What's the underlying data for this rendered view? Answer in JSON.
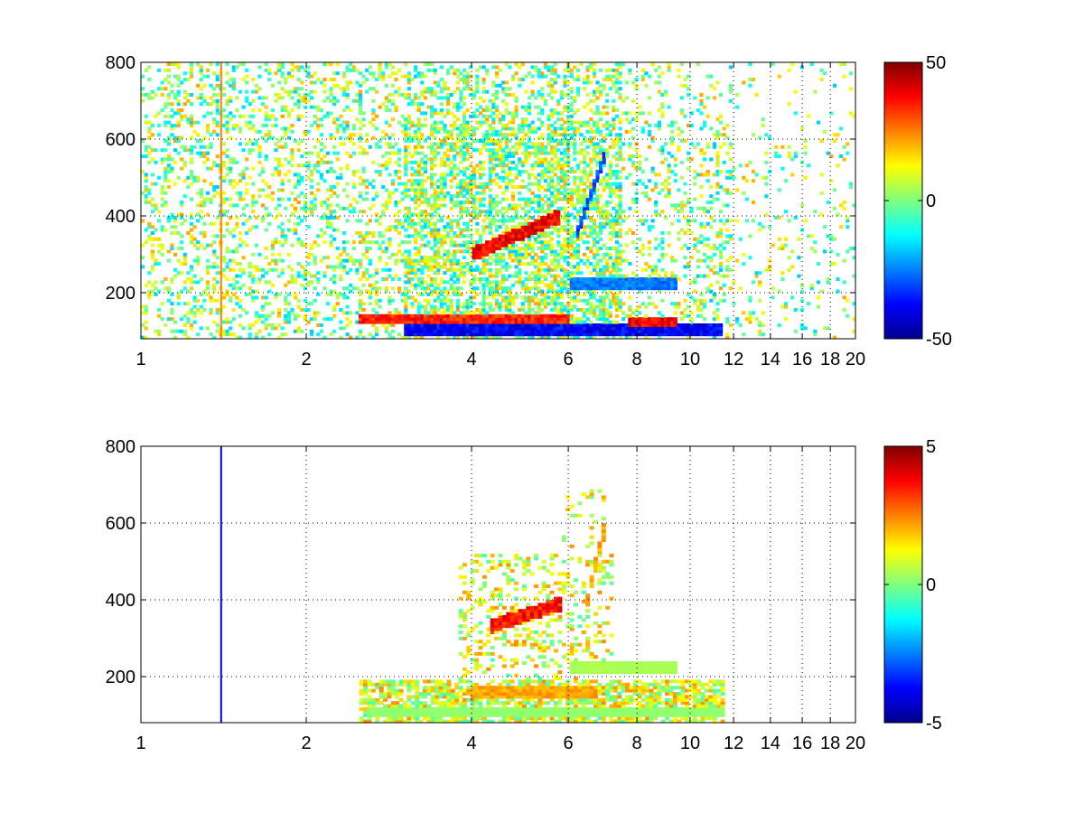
{
  "chart_data": [
    {
      "type": "heatmap",
      "title": "",
      "xlabel": "",
      "ylabel": "",
      "xlim": [
        1,
        20
      ],
      "ylim": [
        80,
        800
      ],
      "x_ticks": [
        1,
        2,
        4,
        6,
        8,
        10,
        12,
        14,
        16,
        18,
        20
      ],
      "x_tick_labels": [
        "1",
        "2",
        "4",
        "6",
        "8",
        "10",
        "12",
        "14",
        "16",
        "18",
        "20"
      ],
      "y_ticks": [
        200,
        400,
        600,
        800
      ],
      "y_tick_labels": [
        "200",
        "400",
        "600",
        "800"
      ],
      "x_scale": "log",
      "grid": true,
      "colormap": "jet",
      "colorbar": {
        "min": -50,
        "max": 50,
        "tick_values": [
          50,
          0,
          -50
        ],
        "tick_labels": [
          "50",
          "0",
          "-50"
        ]
      },
      "features": [
        {
          "kind": "band",
          "x": [
            3.0,
            11.5
          ],
          "y": 105,
          "value": -45
        },
        {
          "kind": "band",
          "x": [
            2.5,
            6.0
          ],
          "y": 130,
          "value": 40
        },
        {
          "kind": "band",
          "x": [
            7.7,
            9.5
          ],
          "y": 125,
          "value": 45
        },
        {
          "kind": "band",
          "x": [
            6.0,
            9.5
          ],
          "y": 225,
          "value": -30
        },
        {
          "kind": "curve",
          "x": [
            4.0,
            5.8
          ],
          "y": [
            300,
            400
          ],
          "value": 45
        },
        {
          "kind": "curve",
          "x": [
            6.2,
            7.0
          ],
          "y": [
            350,
            560
          ],
          "value": -35
        },
        {
          "kind": "line",
          "x": 1.4,
          "value": 25
        }
      ]
    },
    {
      "type": "heatmap",
      "title": "",
      "xlabel": "",
      "ylabel": "",
      "xlim": [
        1,
        20
      ],
      "ylim": [
        80,
        800
      ],
      "x_ticks": [
        1,
        2,
        4,
        6,
        8,
        10,
        12,
        14,
        16,
        18,
        20
      ],
      "x_tick_labels": [
        "1",
        "2",
        "4",
        "6",
        "8",
        "10",
        "12",
        "14",
        "16",
        "18",
        "20"
      ],
      "y_ticks": [
        200,
        400,
        600,
        800
      ],
      "y_tick_labels": [
        "200",
        "400",
        "600",
        "800"
      ],
      "x_scale": "log",
      "grid": true,
      "colormap": "jet",
      "colorbar": {
        "min": -5,
        "max": 5,
        "tick_values": [
          5,
          0,
          -5
        ],
        "tick_labels": [
          "5",
          "0",
          "-5"
        ]
      },
      "features": [
        {
          "kind": "band",
          "x": [
            2.6,
            11.5
          ],
          "y": 110,
          "value": 0.2
        },
        {
          "kind": "band",
          "x": [
            6.0,
            9.5
          ],
          "y": 225,
          "value": 0.5
        },
        {
          "kind": "band",
          "x": [
            4.0,
            6.8
          ],
          "y": 160,
          "value": 2.5
        },
        {
          "kind": "curve",
          "x": [
            4.3,
            5.8
          ],
          "y": [
            330,
            390
          ],
          "value": 4.2
        },
        {
          "kind": "curve",
          "x": [
            6.5,
            7.0
          ],
          "y": [
            400,
            600
          ],
          "value": 2.5
        },
        {
          "kind": "line",
          "x": 1.4,
          "value": -4
        }
      ]
    }
  ]
}
